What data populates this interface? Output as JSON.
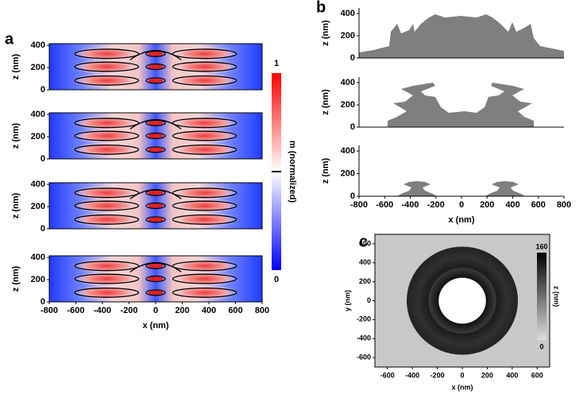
{
  "panel_labels": [
    "a",
    "b",
    "c"
  ],
  "chart_data": [
    {
      "type": "heatmap",
      "ylabel": "z (nm)",
      "xlim": [
        -800,
        800
      ],
      "ylim": [
        0,
        415
      ],
      "yticks": [
        0,
        200,
        400
      ]
    },
    {
      "type": "heatmap",
      "ylabel": "z (nm)",
      "xlim": [
        -800,
        800
      ],
      "ylim": [
        0,
        415
      ],
      "yticks": [
        0,
        200,
        400
      ]
    },
    {
      "type": "heatmap",
      "ylabel": "z (nm)",
      "xlim": [
        -800,
        800
      ],
      "ylim": [
        0,
        415
      ],
      "yticks": [
        0,
        200,
        400
      ]
    },
    {
      "type": "heatmap",
      "ylabel": "z (nm)",
      "xlabel": "x (nm)",
      "xlim": [
        -800,
        800
      ],
      "ylim": [
        0,
        415
      ],
      "yticks": [
        0,
        200,
        400
      ],
      "xticks": [
        -800,
        -600,
        -400,
        -200,
        0,
        200,
        400,
        600,
        800
      ]
    },
    {
      "type": "colorbar",
      "label": "m (normalized)",
      "lim": [
        0,
        1
      ],
      "ticks": [
        0,
        1
      ]
    },
    {
      "type": "profile",
      "ylabel": "z (nm)",
      "xlim": [
        -800,
        800
      ],
      "ylim": [
        0,
        450
      ],
      "yticks": [
        0,
        200,
        400
      ]
    },
    {
      "type": "profile",
      "ylabel": "z (nm)",
      "xlim": [
        -800,
        800
      ],
      "ylim": [
        0,
        450
      ],
      "yticks": [
        0,
        200,
        400
      ]
    },
    {
      "type": "profile",
      "ylabel": "z (nm)",
      "xlabel": "x (nm)",
      "xlim": [
        -800,
        800
      ],
      "ylim": [
        0,
        450
      ],
      "yticks": [
        0,
        200,
        400
      ],
      "xticks": [
        -800,
        -600,
        -400,
        -200,
        0,
        200,
        400,
        600,
        800
      ]
    },
    {
      "type": "map",
      "xlabel": "x (nm)",
      "ylabel": "y (nm)",
      "xlim": [
        -700,
        700
      ],
      "ylim": [
        -700,
        700
      ],
      "xticks": [
        -600,
        -400,
        -200,
        0,
        200,
        400,
        600
      ],
      "yticks": [
        -600,
        -400,
        -200,
        0,
        200,
        400,
        600
      ],
      "colorbar_label": "z (nm)",
      "clim": [
        0,
        160
      ],
      "cticks": [
        0,
        160
      ]
    }
  ]
}
